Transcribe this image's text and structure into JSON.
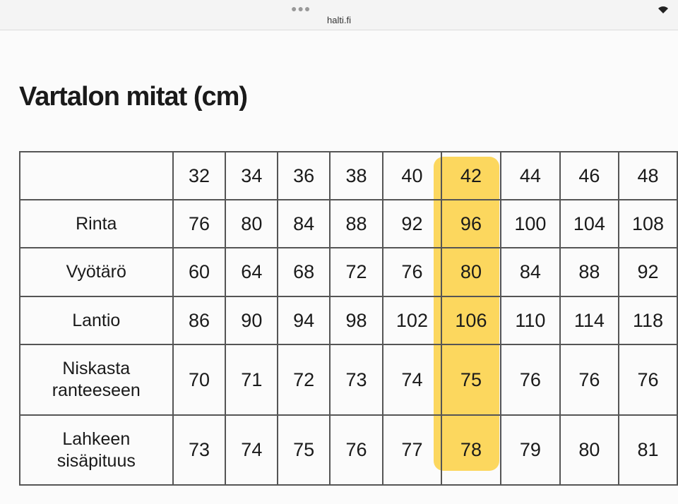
{
  "browser": {
    "url": "halti.fi"
  },
  "page": {
    "title": "Vartalon mitat (cm)",
    "table": {
      "header": [
        "32",
        "34",
        "36",
        "38",
        "40",
        "42",
        "44",
        "46",
        "48"
      ],
      "rows": [
        {
          "label": "Rinta",
          "values": [
            "76",
            "80",
            "84",
            "88",
            "92",
            "96",
            "100",
            "104",
            "108"
          ]
        },
        {
          "label": "Vyötärö",
          "values": [
            "60",
            "64",
            "68",
            "72",
            "76",
            "80",
            "84",
            "88",
            "92"
          ]
        },
        {
          "label": "Lantio",
          "values": [
            "86",
            "90",
            "94",
            "98",
            "102",
            "106",
            "110",
            "114",
            "118"
          ]
        },
        {
          "label": "Niskasta\nranteeseen",
          "values": [
            "70",
            "71",
            "72",
            "73",
            "74",
            "75",
            "76",
            "76",
            "76"
          ]
        },
        {
          "label": "Lahkeen\nsisäpituus",
          "values": [
            "73",
            "74",
            "75",
            "76",
            "77",
            "78",
            "79",
            "80",
            "81"
          ]
        }
      ]
    }
  }
}
